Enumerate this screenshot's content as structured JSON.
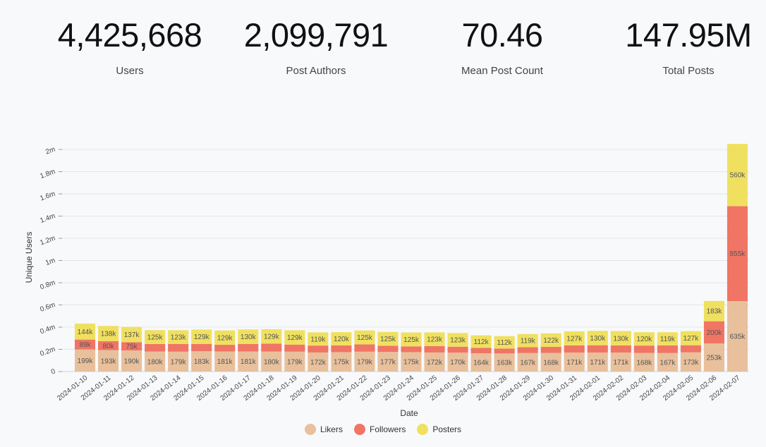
{
  "stats": [
    {
      "value": "4,425,668",
      "label": "Users"
    },
    {
      "value": "2,099,791",
      "label": "Post Authors"
    },
    {
      "value": "70.46",
      "label": "Mean Post Count"
    },
    {
      "value": "147.95M",
      "label": "Total Posts"
    }
  ],
  "colors": {
    "Likers": "#e8c09c",
    "Followers": "#f07565",
    "Posters": "#f0e060"
  },
  "chart_data": {
    "type": "bar",
    "stacked": true,
    "xlabel": "Date",
    "ylabel": "Unique Users",
    "ylim": [
      0,
      2000000
    ],
    "yticks": [
      "0",
      "0.2m",
      "0.4m",
      "0.6m",
      "0.8m",
      "1m",
      "1.2m",
      "1.4m",
      "1.6m",
      "1.8m",
      "2m"
    ],
    "grid": true,
    "legend_position": "bottom",
    "categories": [
      "2024-01-10",
      "2024-01-11",
      "2024-01-12",
      "2024-01-13",
      "2024-01-14",
      "2024-01-15",
      "2024-01-16",
      "2024-01-17",
      "2024-01-18",
      "2024-01-19",
      "2024-01-20",
      "2024-01-21",
      "2024-01-22",
      "2024-01-23",
      "2024-01-24",
      "2024-01-25",
      "2024-01-26",
      "2024-01-27",
      "2024-01-28",
      "2024-01-29",
      "2024-01-30",
      "2024-01-31",
      "2024-02-01",
      "2024-02-02",
      "2024-02-03",
      "2024-02-04",
      "2024-02-05",
      "2024-02-06",
      "2024-02-07"
    ],
    "series": [
      {
        "name": "Likers",
        "values": [
          199000,
          193000,
          190000,
          180000,
          179000,
          183000,
          181000,
          181000,
          180000,
          179000,
          172000,
          175000,
          179000,
          177000,
          175000,
          172000,
          170000,
          164000,
          163000,
          167000,
          168000,
          171000,
          171000,
          171000,
          168000,
          167000,
          173000,
          253000,
          635000
        ],
        "labels": [
          "199k",
          "193k",
          "190k",
          "180k",
          "179k",
          "183k",
          "181k",
          "181k",
          "180k",
          "179k",
          "172k",
          "175k",
          "179k",
          "177k",
          "175k",
          "172k",
          "170k",
          "164k",
          "163k",
          "167k",
          "168k",
          "171k",
          "171k",
          "171k",
          "168k",
          "167k",
          "173k",
          "253k",
          "635k"
        ]
      },
      {
        "name": "Followers",
        "values": [
          89000,
          80000,
          75000,
          68000,
          70000,
          66000,
          60000,
          68000,
          72000,
          64000,
          62000,
          60000,
          66000,
          55000,
          52000,
          58000,
          54000,
          50000,
          44000,
          52000,
          54000,
          64000,
          66000,
          64000,
          66000,
          68000,
          64000,
          200000,
          855000
        ],
        "labels": [
          "89k",
          "80k",
          "75k",
          "",
          "",
          "",
          "",
          "",
          "",
          "",
          "",
          "",
          "",
          "",
          "",
          "",
          "",
          "",
          "",
          "",
          "",
          "",
          "",
          "",
          "",
          "",
          "",
          "200k",
          "855k"
        ]
      },
      {
        "name": "Posters",
        "values": [
          144000,
          138000,
          137000,
          125000,
          123000,
          129000,
          129000,
          130000,
          129000,
          129000,
          119000,
          120000,
          125000,
          125000,
          125000,
          123000,
          123000,
          112000,
          112000,
          119000,
          122000,
          127000,
          130000,
          130000,
          120000,
          119000,
          127000,
          183000,
          560000
        ],
        "labels": [
          "144k",
          "138k",
          "137k",
          "125k",
          "123k",
          "129k",
          "129k",
          "130k",
          "129k",
          "129k",
          "119k",
          "120k",
          "125k",
          "125k",
          "125k",
          "123k",
          "123k",
          "112k",
          "112k",
          "119k",
          "122k",
          "127k",
          "130k",
          "130k",
          "120k",
          "119k",
          "127k",
          "183k",
          "560k"
        ]
      }
    ]
  }
}
